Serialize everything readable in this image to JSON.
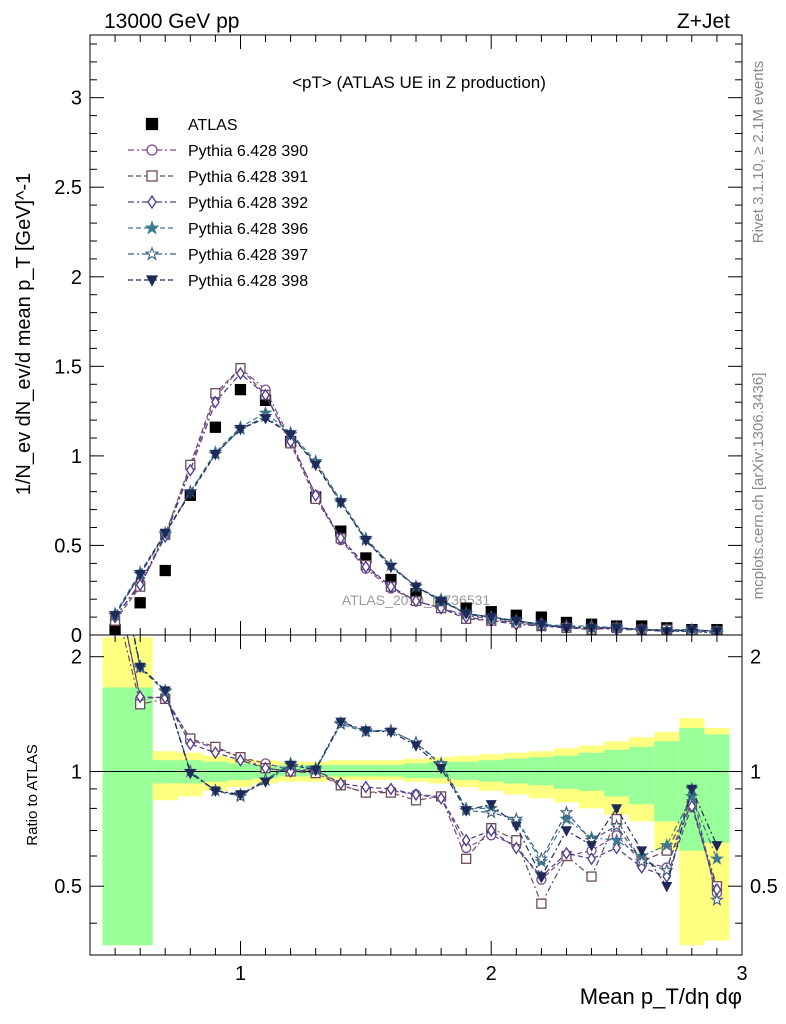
{
  "header": {
    "left": "13000 GeV pp",
    "right": "Z+Jet"
  },
  "side_labels": {
    "rivet": "Rivet 3.1.10, ≥ 2.1M events",
    "mcplots": "mcplots.cern.ch [arXiv:1306.3436]"
  },
  "watermark": "ATLAS_2019_I1736531",
  "chart_data": [
    {
      "type": "scatter",
      "panel": "main",
      "title": "<pT> (ATLAS UE in Z production)",
      "ylabel": "1/N_ev dN_ev/d mean p_T [GeV]^-1",
      "xlim": [
        0.4,
        3.0
      ],
      "ylim": [
        0,
        3.35
      ],
      "yticks": [
        0,
        0.5,
        1,
        1.5,
        2,
        2.5,
        3
      ],
      "ytick_labels": [
        "0",
        "0.5",
        "1",
        "1.5",
        "2",
        "2.5",
        "3"
      ],
      "x": [
        0.5,
        0.6,
        0.7,
        0.8,
        0.9,
        1.0,
        1.1,
        1.2,
        1.3,
        1.4,
        1.5,
        1.6,
        1.7,
        1.8,
        1.9,
        2.0,
        2.1,
        2.2,
        2.3,
        2.4,
        2.5,
        2.6,
        2.7,
        2.8,
        2.9
      ],
      "legend_position": "top-left",
      "series": [
        {
          "name": "ATLAS",
          "color": "#000000",
          "marker": "square-filled",
          "values": [
            0.03,
            0.18,
            0.36,
            0.78,
            1.16,
            1.37,
            1.31,
            1.08,
            0.77,
            0.58,
            0.43,
            0.31,
            0.23,
            0.18,
            0.15,
            0.13,
            0.11,
            0.1,
            0.07,
            0.06,
            0.05,
            0.05,
            0.04,
            0.03,
            0.03
          ]
        },
        {
          "name": "Pythia 6.428 390",
          "color": "#7b4a8f",
          "marker": "circle-open",
          "values": [
            0.1,
            0.29,
            0.56,
            0.94,
            1.33,
            1.49,
            1.37,
            1.09,
            0.78,
            0.53,
            0.37,
            0.26,
            0.19,
            0.15,
            0.11,
            0.09,
            0.07,
            0.06,
            0.04,
            0.04,
            0.04,
            0.03,
            0.02,
            0.03,
            0.02
          ]
        },
        {
          "name": "Pythia 6.428 391",
          "color": "#6e4a5c",
          "marker": "square-open",
          "values": [
            0.08,
            0.27,
            0.56,
            0.95,
            1.35,
            1.49,
            1.34,
            1.07,
            0.76,
            0.54,
            0.39,
            0.27,
            0.19,
            0.15,
            0.09,
            0.08,
            0.07,
            0.05,
            0.04,
            0.03,
            0.04,
            0.03,
            0.03,
            0.02,
            0.02
          ]
        },
        {
          "name": "Pythia 6.428 392",
          "color": "#4a3a8a",
          "marker": "diamond-open",
          "values": [
            0.1,
            0.28,
            0.55,
            0.92,
            1.3,
            1.46,
            1.34,
            1.08,
            0.78,
            0.54,
            0.38,
            0.27,
            0.19,
            0.15,
            0.1,
            0.08,
            0.06,
            0.05,
            0.04,
            0.04,
            0.03,
            0.03,
            0.02,
            0.02,
            0.01
          ]
        },
        {
          "name": "Pythia 6.428 396",
          "color": "#3d7a8f",
          "marker": "star-filled",
          "values": [
            0.12,
            0.35,
            0.57,
            0.8,
            1.02,
            1.16,
            1.24,
            1.13,
            0.97,
            0.75,
            0.54,
            0.39,
            0.27,
            0.2,
            0.12,
            0.1,
            0.08,
            0.06,
            0.05,
            0.05,
            0.04,
            0.03,
            0.03,
            0.03,
            0.02
          ]
        },
        {
          "name": "Pythia 6.428 397",
          "color": "#3b5f80",
          "marker": "star-open",
          "values": [
            0.11,
            0.34,
            0.56,
            0.8,
            1.01,
            1.15,
            1.22,
            1.12,
            0.96,
            0.74,
            0.53,
            0.39,
            0.27,
            0.19,
            0.12,
            0.09,
            0.08,
            0.05,
            0.05,
            0.04,
            0.04,
            0.03,
            0.02,
            0.02,
            0.01
          ]
        },
        {
          "name": "Pythia 6.428 398",
          "color": "#1e2a5a",
          "marker": "triangle-down-filled",
          "values": [
            0.11,
            0.34,
            0.57,
            0.79,
            1.01,
            1.15,
            1.21,
            1.12,
            0.95,
            0.74,
            0.53,
            0.38,
            0.27,
            0.19,
            0.12,
            0.1,
            0.08,
            0.06,
            0.04,
            0.04,
            0.04,
            0.03,
            0.02,
            0.03,
            0.02
          ]
        }
      ]
    },
    {
      "type": "line",
      "panel": "ratio",
      "ylabel": "Ratio to ATLAS",
      "xlabel": "Mean p_T/dη dφ",
      "xlim": [
        0.4,
        3.0
      ],
      "ylim": [
        0.33,
        2.28
      ],
      "xticks": [
        1,
        2,
        3
      ],
      "xtick_labels": [
        "1",
        "2",
        "3"
      ],
      "yticks": [
        0.5,
        1,
        2
      ],
      "ytick_labels": [
        "0.5",
        "1",
        "2"
      ],
      "reference_line": 1,
      "uncertainty_bands": {
        "bin_edges": [
          0.45,
          0.55,
          0.65,
          0.75,
          0.85,
          0.95,
          1.05,
          1.15,
          1.25,
          1.35,
          1.45,
          1.55,
          1.65,
          1.75,
          1.85,
          1.95,
          2.05,
          2.15,
          2.25,
          2.35,
          2.45,
          2.55,
          2.65,
          2.75,
          2.85,
          2.95
        ],
        "outer_color": "#ffff80",
        "inner_color": "#99ff99",
        "outer_low": [
          0.35,
          0.35,
          0.84,
          0.86,
          0.89,
          0.91,
          0.93,
          0.94,
          0.94,
          0.95,
          0.95,
          0.95,
          0.94,
          0.93,
          0.91,
          0.89,
          0.87,
          0.85,
          0.83,
          0.8,
          0.77,
          0.74,
          0.62,
          0.35,
          0.36
        ],
        "outer_high": [
          2.25,
          2.25,
          1.13,
          1.12,
          1.1,
          1.08,
          1.07,
          1.06,
          1.06,
          1.07,
          1.07,
          1.07,
          1.08,
          1.09,
          1.1,
          1.11,
          1.12,
          1.13,
          1.15,
          1.17,
          1.2,
          1.23,
          1.27,
          1.38,
          1.3
        ],
        "inner_low": [
          0.35,
          0.35,
          0.93,
          0.93,
          0.94,
          0.95,
          0.96,
          0.97,
          0.97,
          0.97,
          0.97,
          0.97,
          0.96,
          0.96,
          0.95,
          0.94,
          0.93,
          0.92,
          0.9,
          0.89,
          0.86,
          0.82,
          0.74,
          0.62,
          0.65
        ],
        "inner_high": [
          1.66,
          1.66,
          1.07,
          1.07,
          1.06,
          1.05,
          1.04,
          1.04,
          1.04,
          1.04,
          1.04,
          1.04,
          1.05,
          1.06,
          1.06,
          1.07,
          1.08,
          1.09,
          1.1,
          1.12,
          1.14,
          1.16,
          1.2,
          1.3,
          1.25
        ]
      },
      "x": [
        0.5,
        0.6,
        0.7,
        0.8,
        0.9,
        1.0,
        1.1,
        1.2,
        1.3,
        1.4,
        1.5,
        1.6,
        1.7,
        1.8,
        1.9,
        2.0,
        2.1,
        2.2,
        2.3,
        2.4,
        2.5,
        2.6,
        2.7,
        2.8,
        2.9
      ],
      "series": [
        {
          "name": "Pythia 6.428 390",
          "color": "#7b4a8f",
          "marker": "circle-open",
          "values": [
            3.3,
            1.55,
            1.57,
            1.21,
            1.15,
            1.09,
            1.05,
            1.01,
            1.01,
            0.92,
            0.88,
            0.89,
            0.87,
            0.86,
            0.63,
            0.68,
            0.64,
            0.52,
            0.6,
            0.62,
            0.68,
            0.58,
            0.56,
            0.83,
            0.48
          ]
        },
        {
          "name": "Pythia 6.428 391",
          "color": "#6e4a5c",
          "marker": "square-open",
          "values": [
            2.8,
            1.5,
            1.55,
            1.22,
            1.16,
            1.09,
            1.02,
            1.0,
            0.99,
            0.92,
            0.88,
            0.88,
            0.84,
            0.86,
            0.59,
            0.71,
            0.66,
            0.45,
            0.6,
            0.53,
            0.75,
            0.58,
            0.62,
            0.82,
            0.5
          ]
        },
        {
          "name": "Pythia 6.428 392",
          "color": "#4a3a8a",
          "marker": "diamond-open",
          "values": [
            3.2,
            1.57,
            1.56,
            1.18,
            1.12,
            1.07,
            1.02,
            1.0,
            1.01,
            0.93,
            0.91,
            0.9,
            0.87,
            0.85,
            0.66,
            0.7,
            0.63,
            0.53,
            0.61,
            0.59,
            0.63,
            0.56,
            0.53,
            0.81,
            0.49
          ]
        },
        {
          "name": "Pythia 6.428 396",
          "color": "#3d7a8f",
          "marker": "star-filled",
          "values": [
            4.0,
            1.89,
            1.63,
            1.0,
            0.89,
            0.87,
            0.95,
            1.05,
            1.02,
            1.34,
            1.28,
            1.28,
            1.19,
            1.05,
            0.8,
            0.8,
            0.74,
            0.58,
            0.75,
            0.67,
            0.66,
            0.6,
            0.64,
            0.86,
            0.59
          ]
        },
        {
          "name": "Pythia 6.428 397",
          "color": "#3b5f80",
          "marker": "star-open",
          "values": [
            3.9,
            1.87,
            1.62,
            1.0,
            0.89,
            0.86,
            0.95,
            1.04,
            1.01,
            1.33,
            1.27,
            1.28,
            1.19,
            1.04,
            0.79,
            0.78,
            0.75,
            0.59,
            0.78,
            0.66,
            0.72,
            0.58,
            0.55,
            0.9,
            0.46
          ]
        },
        {
          "name": "Pythia 6.428 398",
          "color": "#1e2a5a",
          "marker": "triangle-down-filled",
          "values": [
            4.0,
            1.88,
            1.63,
            0.99,
            0.89,
            0.87,
            0.94,
            1.04,
            1.01,
            1.35,
            1.28,
            1.27,
            1.17,
            1.02,
            0.79,
            0.82,
            0.72,
            0.53,
            0.7,
            0.64,
            0.8,
            0.62,
            0.5,
            0.9,
            0.64
          ]
        }
      ]
    }
  ]
}
